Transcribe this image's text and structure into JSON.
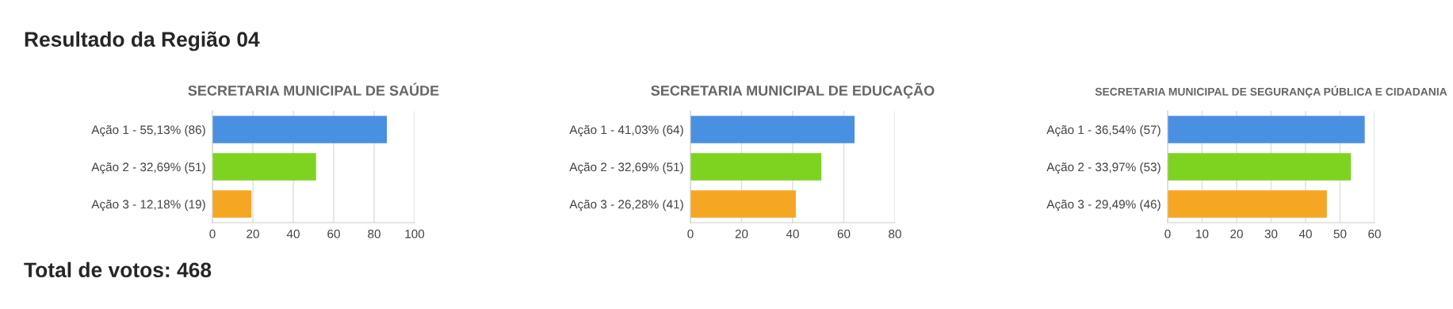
{
  "chart_data": [
    {
      "type": "other",
      "title": "Resultado da Região 04",
      "annotations": [
        "Total de votos: 468"
      ]
    },
    {
      "type": "bar",
      "orientation": "horizontal",
      "title": "SECRETARIA MUNICIPAL DE SAÚDE",
      "categories": [
        "Ação 1 - 55,13% (86)",
        "Ação 2 - 32,69% (51)",
        "Ação 3 - 12,18% (19)"
      ],
      "values": [
        86,
        51,
        19
      ],
      "colors": [
        "#4a90e2",
        "#7ed321",
        "#f5a623"
      ],
      "xlim": [
        0,
        100
      ],
      "xticks": [
        0,
        20,
        40,
        60,
        80,
        100
      ],
      "grid": "x"
    },
    {
      "type": "bar",
      "orientation": "horizontal",
      "title": "SECRETARIA MUNICIPAL DE EDUCAÇÃO",
      "categories": [
        "Ação 1 - 41,03% (64)",
        "Ação 2 - 32,69% (51)",
        "Ação 3 - 26,28% (41)"
      ],
      "values": [
        64,
        51,
        41
      ],
      "colors": [
        "#4a90e2",
        "#7ed321",
        "#f5a623"
      ],
      "xlim": [
        0,
        80
      ],
      "xticks": [
        0,
        20,
        40,
        60,
        80
      ],
      "grid": "x"
    },
    {
      "type": "bar",
      "orientation": "horizontal",
      "title": "SECRETARIA MUNICIPAL DE SEGURANÇA PÚBLICA E CIDADANIA",
      "categories": [
        "Ação 1 - 36,54% (57)",
        "Ação 2 - 33,97% (53)",
        "Ação 3 - 29,49% (46)"
      ],
      "values": [
        57,
        53,
        46
      ],
      "colors": [
        "#4a90e2",
        "#7ed321",
        "#f5a623"
      ],
      "xlim": [
        0,
        60
      ],
      "xticks": [
        0,
        10,
        20,
        30,
        40,
        50,
        60
      ],
      "grid": "x"
    }
  ]
}
